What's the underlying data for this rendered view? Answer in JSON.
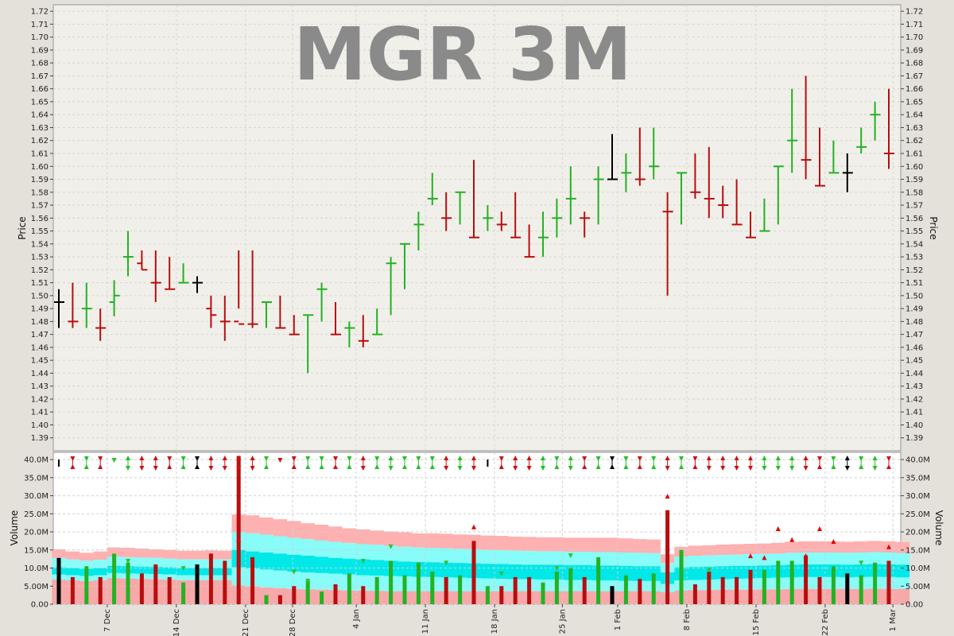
{
  "chart_data": {
    "type": "ohlc-volume",
    "title": "MGR 3M",
    "price_panel": {
      "ylabel": "Price",
      "ylim": [
        1.38,
        1.725
      ],
      "yticks": [
        1.39,
        1.4,
        1.41,
        1.42,
        1.43,
        1.44,
        1.45,
        1.46,
        1.47,
        1.48,
        1.49,
        1.5,
        1.51,
        1.52,
        1.53,
        1.54,
        1.55,
        1.56,
        1.57,
        1.58,
        1.59,
        1.6,
        1.61,
        1.62,
        1.63,
        1.64,
        1.65,
        1.66,
        1.67,
        1.68,
        1.69,
        1.7,
        1.71,
        1.72
      ],
      "grid": true
    },
    "volume_panel": {
      "ylabel": "Volume",
      "ylim": [
        0,
        42000000
      ],
      "yticks": [
        0,
        5000000,
        10000000,
        15000000,
        20000000,
        25000000,
        30000000,
        35000000,
        40000000
      ],
      "ytick_labels": [
        "0.00",
        "5.00M",
        "10.0M",
        "15.0M",
        "20.0M",
        "25.0M",
        "30.0M",
        "35.0M",
        "40.0M"
      ],
      "grid": true
    },
    "x_labels": [
      {
        "label": "7 Dec",
        "idx": 3.5
      },
      {
        "label": "14 Dec",
        "idx": 8.5
      },
      {
        "label": "21 Dec",
        "idx": 13.5
      },
      {
        "label": "28 Dec",
        "idx": 16.9
      },
      {
        "label": "4 Jan",
        "idx": 21.5
      },
      {
        "label": "11 Jan",
        "idx": 26.5
      },
      {
        "label": "18 Jan",
        "idx": 31.5
      },
      {
        "label": "25 Jan",
        "idx": 36.4
      },
      {
        "label": "1 Feb",
        "idx": 40.4
      },
      {
        "label": "8 Feb",
        "idx": 45.4
      },
      {
        "label": "15 Feb",
        "idx": 50.4
      },
      {
        "label": "22 Feb",
        "idx": 55.4
      },
      {
        "label": "1 Mar",
        "idx": 60.3
      }
    ],
    "colors": {
      "up": "#22b222",
      "down": "#b80d0d",
      "flat": "#000000",
      "band_upper": "#ffb0b0",
      "band_middle": "#88fcf8",
      "band_core": "#00e8e8",
      "band_lower": "#f7a8a8",
      "arrow_up": "#e00000",
      "arrow_down": "#30c030"
    },
    "bars": [
      {
        "o": 1.495,
        "h": 1.505,
        "l": 1.475,
        "c": 1.495,
        "dir": "flat",
        "v": 12.8,
        "s": "bar"
      },
      {
        "o": 1.48,
        "h": 1.51,
        "l": 1.475,
        "c": 1.48,
        "dir": "down",
        "v": 7.5,
        "s": "x"
      },
      {
        "o": 1.49,
        "h": 1.51,
        "l": 1.475,
        "c": 1.49,
        "dir": "up",
        "v": 10.5,
        "s": "x"
      },
      {
        "o": 1.475,
        "h": 1.49,
        "l": 1.465,
        "c": 1.475,
        "dir": "down",
        "v": 7.5,
        "s": "x"
      },
      {
        "o": 1.495,
        "h": 1.512,
        "l": 1.484,
        "c": 1.5,
        "dir": "up",
        "v": 14.0,
        "s": "down"
      },
      {
        "o": 1.53,
        "h": 1.55,
        "l": 1.515,
        "c": 1.53,
        "dir": "up",
        "v": 11.5,
        "s": "updown"
      },
      {
        "o": 1.525,
        "h": 1.535,
        "l": 1.52,
        "c": 1.52,
        "dir": "down",
        "v": 8.5,
        "s": "updown"
      },
      {
        "o": 1.51,
        "h": 1.535,
        "l": 1.495,
        "c": 1.51,
        "dir": "down",
        "v": 11.0,
        "s": "updown"
      },
      {
        "o": 1.505,
        "h": 1.53,
        "l": 1.505,
        "c": 1.505,
        "dir": "down",
        "v": 7.5,
        "s": "x"
      },
      {
        "o": 1.51,
        "h": 1.525,
        "l": 1.51,
        "c": 1.51,
        "dir": "up",
        "v": 6.0,
        "s": "x"
      },
      {
        "o": 1.51,
        "h": 1.515,
        "l": 1.502,
        "c": 1.51,
        "dir": "flat",
        "v": 11.0,
        "s": "x"
      },
      {
        "o": 1.49,
        "h": 1.5,
        "l": 1.475,
        "c": 1.485,
        "dir": "down",
        "v": 14.0,
        "s": "updown"
      },
      {
        "o": 1.48,
        "h": 1.5,
        "l": 1.465,
        "c": 1.48,
        "dir": "down",
        "v": 12.0,
        "s": "updown"
      },
      {
        "o": 1.48,
        "h": 1.535,
        "l": 1.49,
        "c": 1.478,
        "dir": "down",
        "v": 41.0,
        "s": "updown"
      },
      {
        "o": 1.478,
        "h": 1.535,
        "l": 1.475,
        "c": 1.478,
        "dir": "down",
        "v": 13.0,
        "s": "updown"
      },
      {
        "o": 1.495,
        "h": 1.495,
        "l": 1.475,
        "c": 1.495,
        "dir": "up",
        "v": 2.5,
        "s": "x"
      },
      {
        "o": 1.475,
        "h": 1.5,
        "l": 1.475,
        "c": 1.475,
        "dir": "down",
        "v": 2.5,
        "s": "down"
      },
      {
        "o": 1.47,
        "h": 1.485,
        "l": 1.47,
        "c": 1.47,
        "dir": "down",
        "v": 5.0,
        "s": "x"
      },
      {
        "o": 1.485,
        "h": 1.485,
        "l": 1.44,
        "c": 1.485,
        "dir": "up",
        "v": 6.5,
        "s": "x"
      },
      {
        "o": 1.505,
        "h": 1.51,
        "l": 1.48,
        "c": 1.505,
        "dir": "up",
        "v": 3.5,
        "s": "x"
      },
      {
        "o": 1.47,
        "h": 1.495,
        "l": 1.47,
        "c": 1.47,
        "dir": "down",
        "v": 5.5,
        "s": "x"
      },
      {
        "o": 1.475,
        "h": 1.48,
        "l": 1.46,
        "c": 1.475,
        "dir": "up",
        "v": 8.5,
        "s": "x"
      },
      {
        "o": 1.465,
        "h": 1.485,
        "l": 1.46,
        "c": 1.465,
        "dir": "down",
        "v": 5.0,
        "s": "updown"
      },
      {
        "o": 1.47,
        "h": 1.49,
        "l": 1.47,
        "c": 1.47,
        "dir": "up",
        "v": 7.5,
        "s": "x"
      },
      {
        "o": 1.525,
        "h": 1.53,
        "l": 1.485,
        "c": 1.525,
        "dir": "up",
        "v": 12.0,
        "s": "updown"
      },
      {
        "o": 1.54,
        "h": 1.54,
        "l": 1.505,
        "c": 1.54,
        "dir": "up",
        "v": 8.0,
        "s": "x"
      },
      {
        "o": 1.555,
        "h": 1.565,
        "l": 1.535,
        "c": 1.555,
        "dir": "up",
        "v": 11.5,
        "s": "x"
      },
      {
        "o": 1.575,
        "h": 1.595,
        "l": 1.57,
        "c": 1.575,
        "dir": "up",
        "v": 9.0,
        "s": "x"
      },
      {
        "o": 1.56,
        "h": 1.58,
        "l": 1.55,
        "c": 1.56,
        "dir": "down",
        "v": 7.5,
        "s": "updown"
      },
      {
        "o": 1.58,
        "h": 1.58,
        "l": 1.555,
        "c": 1.58,
        "dir": "up",
        "v": 8.0,
        "s": "updown"
      },
      {
        "o": 1.545,
        "h": 1.605,
        "l": 1.545,
        "c": 1.545,
        "dir": "down",
        "v": 17.5,
        "s": "updown"
      },
      {
        "o": 1.56,
        "h": 1.57,
        "l": 1.55,
        "c": 1.56,
        "dir": "up",
        "v": 5.0,
        "s": "bar"
      },
      {
        "o": 1.555,
        "h": 1.565,
        "l": 1.55,
        "c": 1.555,
        "dir": "down",
        "v": 5.0,
        "s": "x"
      },
      {
        "o": 1.545,
        "h": 1.58,
        "l": 1.545,
        "c": 1.545,
        "dir": "down",
        "v": 7.5,
        "s": "updown"
      },
      {
        "o": 1.53,
        "h": 1.555,
        "l": 1.53,
        "c": 1.53,
        "dir": "down",
        "v": 7.5,
        "s": "updown"
      },
      {
        "o": 1.545,
        "h": 1.565,
        "l": 1.53,
        "c": 1.545,
        "dir": "up",
        "v": 6.0,
        "s": "updown"
      },
      {
        "o": 1.56,
        "h": 1.575,
        "l": 1.545,
        "c": 1.56,
        "dir": "up",
        "v": 9.0,
        "s": "x"
      },
      {
        "o": 1.575,
        "h": 1.6,
        "l": 1.555,
        "c": 1.575,
        "dir": "up",
        "v": 10.0,
        "s": "updown"
      },
      {
        "o": 1.56,
        "h": 1.565,
        "l": 1.545,
        "c": 1.56,
        "dir": "down",
        "v": 7.5,
        "s": "x"
      },
      {
        "o": 1.59,
        "h": 1.6,
        "l": 1.555,
        "c": 1.59,
        "dir": "up",
        "v": 13.0,
        "s": "x"
      },
      {
        "o": 1.59,
        "h": 1.625,
        "l": 1.59,
        "c": 1.59,
        "dir": "flat",
        "v": 5.0,
        "s": "x"
      },
      {
        "o": 1.595,
        "h": 1.61,
        "l": 1.58,
        "c": 1.595,
        "dir": "up",
        "v": 8.0,
        "s": "x"
      },
      {
        "o": 1.59,
        "h": 1.63,
        "l": 1.585,
        "c": 1.59,
        "dir": "down",
        "v": 7.0,
        "s": "x"
      },
      {
        "o": 1.6,
        "h": 1.63,
        "l": 1.59,
        "c": 1.6,
        "dir": "up",
        "v": 8.5,
        "s": "x"
      },
      {
        "o": 1.565,
        "h": 1.58,
        "l": 1.5,
        "c": 1.565,
        "dir": "down",
        "v": 26.0,
        "s": "updown"
      },
      {
        "o": 1.595,
        "h": 1.595,
        "l": 1.555,
        "c": 1.595,
        "dir": "up",
        "v": 15.0,
        "s": "x"
      },
      {
        "o": 1.58,
        "h": 1.61,
        "l": 1.575,
        "c": 1.58,
        "dir": "down",
        "v": 5.5,
        "s": "x"
      },
      {
        "o": 1.575,
        "h": 1.615,
        "l": 1.56,
        "c": 1.575,
        "dir": "down",
        "v": 9.0,
        "s": "updown"
      },
      {
        "o": 1.57,
        "h": 1.585,
        "l": 1.56,
        "c": 1.57,
        "dir": "down",
        "v": 7.5,
        "s": "updown"
      },
      {
        "o": 1.555,
        "h": 1.59,
        "l": 1.555,
        "c": 1.555,
        "dir": "down",
        "v": 7.5,
        "s": "updown"
      },
      {
        "o": 1.545,
        "h": 1.565,
        "l": 1.545,
        "c": 1.545,
        "dir": "down",
        "v": 9.5,
        "s": "updown"
      },
      {
        "o": 1.55,
        "h": 1.575,
        "l": 1.55,
        "c": 1.55,
        "dir": "up",
        "v": 9.5,
        "s": "updown"
      },
      {
        "o": 1.6,
        "h": 1.6,
        "l": 1.555,
        "c": 1.6,
        "dir": "up",
        "v": 12.0,
        "s": "updown"
      },
      {
        "o": 1.62,
        "h": 1.66,
        "l": 1.595,
        "c": 1.62,
        "dir": "up",
        "v": 12.0,
        "s": "updown"
      },
      {
        "o": 1.605,
        "h": 1.67,
        "l": 1.59,
        "c": 1.605,
        "dir": "down",
        "v": 13.5,
        "s": "updown"
      },
      {
        "o": 1.585,
        "h": 1.63,
        "l": 1.585,
        "c": 1.585,
        "dir": "down",
        "v": 7.5,
        "s": "x"
      },
      {
        "o": 1.595,
        "h": 1.62,
        "l": 1.595,
        "c": 1.595,
        "dir": "up",
        "v": 10.5,
        "s": "x"
      },
      {
        "o": 1.595,
        "h": 1.61,
        "l": 1.58,
        "c": 1.595,
        "dir": "flat",
        "v": 8.5,
        "s": "updown"
      },
      {
        "o": 1.615,
        "h": 1.63,
        "l": 1.61,
        "c": 1.615,
        "dir": "up",
        "v": 8.0,
        "s": "x"
      },
      {
        "o": 1.64,
        "h": 1.65,
        "l": 1.62,
        "c": 1.64,
        "dir": "up",
        "v": 11.5,
        "s": "updown"
      },
      {
        "o": 1.61,
        "h": 1.66,
        "l": 1.598,
        "c": 1.61,
        "dir": "down",
        "v": 12.0,
        "s": "x"
      }
    ],
    "signals": [
      {
        "idx": 13,
        "type": "up",
        "v": 17.0
      },
      {
        "idx": 30,
        "type": "up",
        "v": 20.5
      },
      {
        "idx": 44,
        "type": "up",
        "v": 29.0
      },
      {
        "idx": 56,
        "type": "up",
        "v": 16.5
      },
      {
        "idx": 53,
        "type": "up",
        "v": 17.0
      },
      {
        "idx": 52,
        "type": "up",
        "v": 20.0
      },
      {
        "idx": 51,
        "type": "up",
        "v": 12.0
      },
      {
        "idx": 55,
        "type": "up",
        "v": 20.0
      },
      {
        "idx": 60,
        "type": "up",
        "v": 15.0
      },
      {
        "idx": 54,
        "type": "up",
        "v": 12.5
      },
      {
        "idx": 5,
        "type": "down",
        "v": 11.0
      },
      {
        "idx": 9,
        "type": "down",
        "v": 9.0
      },
      {
        "idx": 17,
        "type": "down",
        "v": 8.0
      },
      {
        "idx": 18,
        "type": "down",
        "v": 5.5
      },
      {
        "idx": 22,
        "type": "down",
        "v": 11.0
      },
      {
        "idx": 24,
        "type": "down",
        "v": 15.0
      },
      {
        "idx": 28,
        "type": "down",
        "v": 10.5
      },
      {
        "idx": 32,
        "type": "down",
        "v": 7.5
      },
      {
        "idx": 36,
        "type": "down",
        "v": 9.0
      },
      {
        "idx": 37,
        "type": "down",
        "v": 12.5
      },
      {
        "idx": 47,
        "type": "down",
        "v": 8.5
      },
      {
        "idx": 50,
        "type": "up",
        "v": 12.5
      },
      {
        "idx": 58,
        "type": "down",
        "v": 10.5
      }
    ],
    "bands": {
      "upper": [
        15.2,
        14.6,
        14.2,
        14.6,
        15.7,
        15.6,
        15.4,
        15.2,
        15.0,
        14.8,
        14.8,
        14.9,
        14.8,
        24.8,
        24.6,
        24.0,
        23.5,
        23.0,
        22.4,
        22.0,
        21.5,
        21.0,
        20.7,
        20.4,
        20.1,
        19.9,
        19.6,
        19.6,
        19.5,
        19.3,
        19.2,
        19.0,
        18.9,
        18.7,
        18.6,
        18.5,
        18.5,
        18.4,
        18.4,
        18.4,
        18.4,
        18.2,
        18.0,
        17.9,
        13.8,
        15.9,
        16.2,
        16.3,
        16.5,
        16.6,
        16.7,
        16.8,
        17.0,
        17.3,
        17.4,
        17.4,
        17.4,
        17.3,
        17.4,
        17.5,
        17.4,
        17.2
      ],
      "mid_hi": [
        12.8,
        12.4,
        12.0,
        12.3,
        13.2,
        13.0,
        12.9,
        12.8,
        12.6,
        12.4,
        12.4,
        12.4,
        12.4,
        20.0,
        19.6,
        19.2,
        18.8,
        18.4,
        18.0,
        17.6,
        17.2,
        16.9,
        16.6,
        16.4,
        16.1,
        15.9,
        15.7,
        15.6,
        15.5,
        15.3,
        15.2,
        15.0,
        14.9,
        14.8,
        14.7,
        14.6,
        14.6,
        14.5,
        14.5,
        14.4,
        14.4,
        14.3,
        14.2,
        14.1,
        11.4,
        13.2,
        13.4,
        13.5,
        13.6,
        13.7,
        13.8,
        13.9,
        14.0,
        14.2,
        14.3,
        14.3,
        14.3,
        14.2,
        14.3,
        14.4,
        14.3,
        14.1
      ],
      "core_hi": [
        10.2,
        10.0,
        9.8,
        10.0,
        10.6,
        10.5,
        10.4,
        10.3,
        10.2,
        10.0,
        10.0,
        10.0,
        10.0,
        15.0,
        14.6,
        14.3,
        14.0,
        13.7,
        13.4,
        13.1,
        12.8,
        12.6,
        12.4,
        12.2,
        12.0,
        11.8,
        11.7,
        11.6,
        11.5,
        11.4,
        11.3,
        11.2,
        11.1,
        11.0,
        10.9,
        10.9,
        10.9,
        10.8,
        10.8,
        10.7,
        10.7,
        10.6,
        10.5,
        10.5,
        8.8,
        10.2,
        10.3,
        10.4,
        10.5,
        10.6,
        10.6,
        10.7,
        10.8,
        10.9,
        11.0,
        11.0,
        11.0,
        10.9,
        11.0,
        11.1,
        11.0,
        10.9
      ],
      "core_lo": [
        8.2,
        8.0,
        7.8,
        8.0,
        8.6,
        8.5,
        8.4,
        8.3,
        8.2,
        8.0,
        8.0,
        8.0,
        8.0,
        10.2,
        9.9,
        9.6,
        9.3,
        9.0,
        8.8,
        8.6,
        8.4,
        8.2,
        8.0,
        7.9,
        7.8,
        7.7,
        7.6,
        7.5,
        7.4,
        7.3,
        7.2,
        7.1,
        7.0,
        6.9,
        6.9,
        6.8,
        6.8,
        6.7,
        6.7,
        6.6,
        6.6,
        6.5,
        6.4,
        6.4,
        5.6,
        6.6,
        6.7,
        6.8,
        6.9,
        7.0,
        7.1,
        7.2,
        7.3,
        7.4,
        7.5,
        7.5,
        7.5,
        7.4,
        7.5,
        7.6,
        7.5,
        7.4
      ],
      "mid_lo": [
        6.8,
        6.6,
        6.4,
        6.6,
        7.2,
        7.1,
        7.0,
        6.9,
        6.8,
        6.6,
        6.6,
        6.6,
        6.6,
        5.2,
        4.9,
        4.6,
        4.4,
        4.2,
        4.1,
        4.0,
        3.9,
        3.8,
        3.7,
        3.7,
        3.6,
        3.6,
        3.6,
        3.6,
        3.6,
        3.6,
        3.6,
        3.6,
        3.6,
        3.6,
        3.6,
        3.6,
        3.6,
        3.6,
        3.6,
        3.6,
        3.6,
        3.6,
        3.6,
        3.6,
        3.3,
        3.8,
        3.9,
        3.9,
        4.0,
        4.0,
        4.0,
        4.1,
        4.1,
        4.2,
        4.2,
        4.2,
        4.2,
        4.2,
        4.2,
        4.3,
        4.2,
        4.2
      ]
    }
  }
}
